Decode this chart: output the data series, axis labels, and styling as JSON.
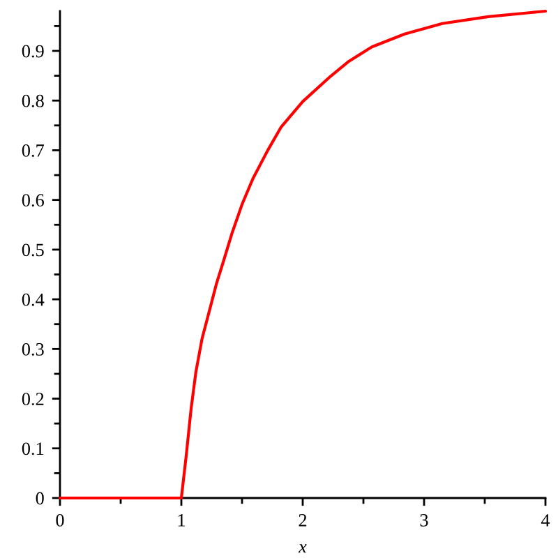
{
  "chart_data": {
    "type": "line",
    "xlabel": "x",
    "x": [
      0,
      1,
      1.04,
      1.08,
      1.12,
      1.17,
      1.23,
      1.29,
      1.35,
      1.42,
      1.5,
      1.59,
      1.71,
      1.82,
      2.0,
      2.23,
      2.38,
      2.57,
      2.84,
      3.15,
      3.53,
      4
    ],
    "values": [
      0,
      0,
      0.085,
      0.179,
      0.254,
      0.32,
      0.376,
      0.432,
      0.479,
      0.535,
      0.591,
      0.643,
      0.699,
      0.746,
      0.798,
      0.849,
      0.879,
      0.908,
      0.934,
      0.955,
      0.969,
      0.98
    ],
    "color": "#ff0000",
    "xlim": [
      0,
      4
    ],
    "ylim": [
      0,
      0.98
    ],
    "xticks": [
      0,
      {
        "value": 0.5,
        "label": null
      },
      1,
      {
        "value": 1.5,
        "label": null
      },
      2,
      {
        "value": 2.5,
        "label": null
      },
      3,
      {
        "value": 3.5,
        "label": null
      },
      4
    ],
    "yticks": [
      0,
      {
        "value": 0.05,
        "label": null
      },
      0.1,
      {
        "value": 0.15,
        "label": null
      },
      0.2,
      {
        "value": 0.25,
        "label": null
      },
      0.3,
      {
        "value": 0.35,
        "label": null
      },
      0.4,
      {
        "value": 0.45,
        "label": null
      },
      0.5,
      {
        "value": 0.55,
        "label": null
      },
      0.6,
      {
        "value": 0.65,
        "label": null
      },
      0.7,
      {
        "value": 0.75,
        "label": null
      },
      0.8,
      {
        "value": 0.85,
        "label": null
      },
      0.9,
      {
        "value": 0.95,
        "label": null
      }
    ]
  }
}
